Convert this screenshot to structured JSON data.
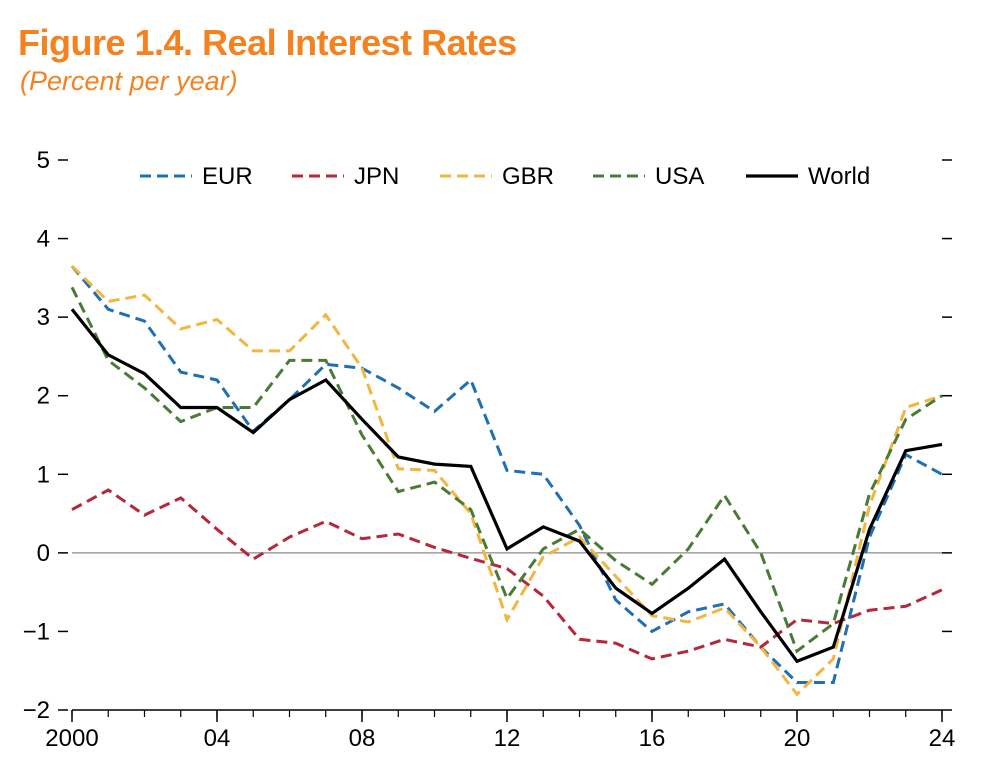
{
  "figure": {
    "title": "Figure 1.4. Real Interest Rates",
    "subtitle": "(Percent per year)"
  },
  "chart_data": {
    "type": "line",
    "title": "Figure 1.4. Real Interest Rates",
    "subtitle": "(Percent per year)",
    "xlabel": "",
    "ylabel": "",
    "x": [
      2000,
      2001,
      2002,
      2003,
      2004,
      2005,
      2006,
      2007,
      2008,
      2009,
      2010,
      2011,
      2012,
      2013,
      2014,
      2015,
      2016,
      2017,
      2018,
      2019,
      2020,
      2021,
      2022,
      2023,
      2024
    ],
    "xlim": [
      2000,
      2024
    ],
    "ylim": [
      -2,
      5
    ],
    "x_ticks": [
      2000,
      2004,
      2008,
      2012,
      2016,
      2020,
      2024
    ],
    "x_tick_labels": [
      "2000",
      "04",
      "08",
      "12",
      "16",
      "20",
      "24"
    ],
    "y_ticks": [
      -2,
      -1,
      0,
      1,
      2,
      3,
      4,
      5
    ],
    "y_tick_labels": [
      "−2",
      "−1",
      "0",
      "1",
      "2",
      "3",
      "4",
      "5"
    ],
    "zero_line": true,
    "grid": false,
    "legend_position": "top",
    "series": [
      {
        "name": "EUR",
        "color": "#1f6fb2",
        "style": "dashed",
        "values": [
          3.65,
          3.1,
          2.95,
          2.3,
          2.2,
          1.55,
          1.95,
          2.4,
          2.35,
          2.1,
          1.8,
          2.2,
          1.05,
          1.0,
          0.35,
          -0.6,
          -1.0,
          -0.75,
          -0.65,
          -1.2,
          -1.65,
          -1.65,
          0.2,
          1.25,
          1.0
        ]
      },
      {
        "name": "JPN",
        "color": "#b5283c",
        "style": "dashed",
        "values": [
          0.55,
          0.8,
          0.48,
          0.7,
          0.3,
          -0.08,
          0.2,
          0.4,
          0.18,
          0.24,
          0.07,
          -0.07,
          -0.2,
          -0.55,
          -1.1,
          -1.15,
          -1.35,
          -1.25,
          -1.1,
          -1.2,
          -0.85,
          -0.9,
          -0.73,
          -0.68,
          -0.47
        ]
      },
      {
        "name": "GBR",
        "color": "#f2b63f",
        "style": "dashed",
        "values": [
          3.65,
          3.2,
          3.28,
          2.85,
          2.97,
          2.57,
          2.57,
          3.03,
          2.35,
          1.07,
          1.05,
          0.5,
          -0.85,
          -0.05,
          0.2,
          -0.3,
          -0.8,
          -0.88,
          -0.7,
          -1.2,
          -1.8,
          -1.35,
          0.6,
          1.85,
          2.0
        ]
      },
      {
        "name": "USA",
        "color": "#4a7b35",
        "style": "dashed",
        "values": [
          3.38,
          2.45,
          2.1,
          1.67,
          1.85,
          1.85,
          2.45,
          2.45,
          1.5,
          0.78,
          0.9,
          0.55,
          -0.58,
          0.05,
          0.3,
          -0.1,
          -0.4,
          0.05,
          0.73,
          0.0,
          -1.25,
          -0.9,
          0.75,
          1.7,
          2.0
        ]
      },
      {
        "name": "World",
        "color": "#000000",
        "style": "solid",
        "values": [
          3.1,
          2.52,
          2.28,
          1.85,
          1.85,
          1.53,
          1.95,
          2.2,
          1.7,
          1.22,
          1.13,
          1.1,
          0.05,
          0.33,
          0.15,
          -0.45,
          -0.77,
          -0.45,
          -0.08,
          -0.75,
          -1.38,
          -1.2,
          0.3,
          1.3,
          1.38
        ]
      }
    ]
  }
}
